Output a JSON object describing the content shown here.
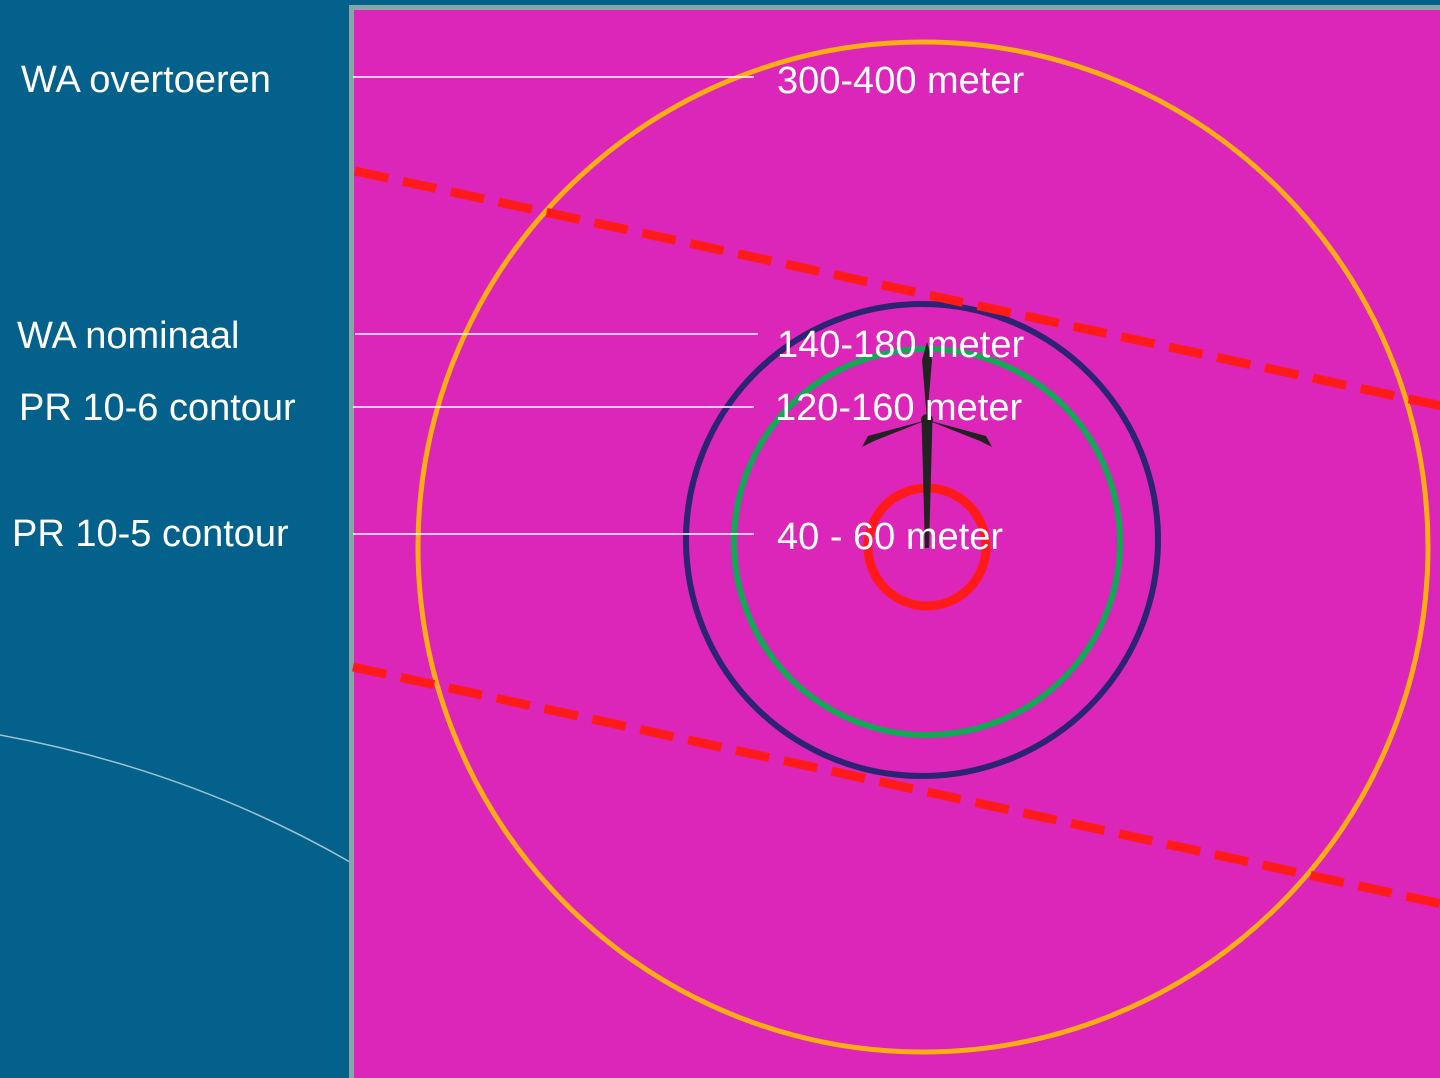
{
  "labels": {
    "wa_overtoeren": "WA overtoeren",
    "wa_nominaal": "WA nominaal",
    "pr_10_6": "PR 10-6 contour",
    "pr_10_5": "PR 10-5 contour"
  },
  "distances": {
    "wa_overtoeren": "300-400 meter",
    "wa_nominaal": "140-180 meter",
    "pr_10_6": "120-160 meter",
    "pr_10_5": "40 - 60 meter"
  },
  "colors": {
    "slide_background": "#04618c",
    "panel_fill": "#dc25b9",
    "panel_border": "#8ba4a8",
    "wa_overtoeren_ring": "#fdae14",
    "wa_nominaal_ring": "#2a2472",
    "pr_10_6_ring": "#10a955",
    "pr_10_5_ring": "#ff1a1a",
    "corridor_dashes": "#ff1a1a",
    "turbine": "#222222",
    "leader_lines": "#ffffff"
  },
  "icons": {
    "turbine": "wind-turbine-icon"
  }
}
